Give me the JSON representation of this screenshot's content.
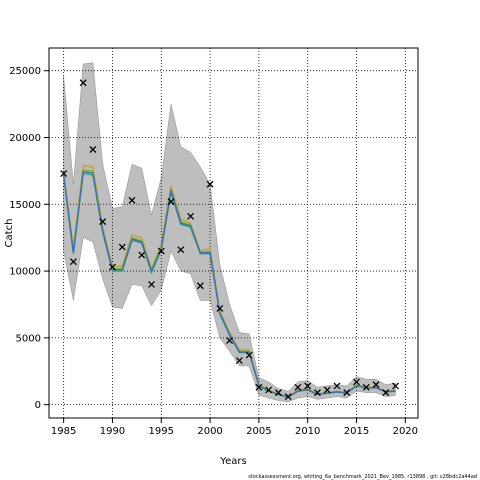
{
  "chart_data": {
    "type": "line",
    "title": "",
    "xlabel": "Years",
    "ylabel": "Catch",
    "xlim": [
      1983.5,
      2021.3
    ],
    "ylim": [
      -1000,
      26700
    ],
    "xticks": [
      1985,
      1990,
      1995,
      2000,
      2005,
      2010,
      2015,
      2020
    ],
    "yticks": [
      0,
      5000,
      10000,
      15000,
      20000,
      25000
    ],
    "grid": true,
    "legend": "none",
    "x": [
      1985,
      1986,
      1987,
      1988,
      1989,
      1990,
      1991,
      1992,
      1993,
      1994,
      1995,
      1996,
      1997,
      1998,
      1999,
      2000,
      2001,
      2002,
      2003,
      2004,
      2005,
      2006,
      2007,
      2008,
      2009,
      2010,
      2011,
      2012,
      2013,
      2014,
      2015,
      2016,
      2017,
      2018,
      2019
    ],
    "band_upper": [
      24600,
      16500,
      25500,
      25600,
      18000,
      14700,
      14800,
      18000,
      17700,
      14200,
      17000,
      22500,
      19300,
      18900,
      17800,
      16500,
      10500,
      7500,
      5400,
      5300,
      2000,
      1700,
      1200,
      1000,
      1700,
      1800,
      1300,
      1400,
      1500,
      1400,
      2100,
      1900,
      1900,
      1500,
      1600
    ],
    "band_lower": [
      11500,
      7800,
      12500,
      12200,
      9400,
      7300,
      7200,
      9000,
      8900,
      7400,
      8600,
      11500,
      10000,
      9800,
      7800,
      7800,
      5000,
      4000,
      2900,
      2900,
      700,
      500,
      300,
      200,
      500,
      600,
      400,
      500,
      600,
      500,
      1000,
      900,
      900,
      600,
      700
    ],
    "series": [
      {
        "values": [
          17400,
          11700,
          17900,
          17800,
          13300,
          10300,
          10400,
          12700,
          12500,
          10200,
          12000,
          16400,
          13900,
          13600,
          11500,
          11700,
          7000,
          5400,
          4100,
          4100,
          1500,
          1100,
          800,
          600,
          1100,
          1200,
          800,
          900,
          1000,
          900,
          1500,
          1300,
          1300,
          1000,
          1100
        ],
        "color": "#c8a03c"
      },
      {
        "values": [
          17300,
          11500,
          17600,
          17500,
          13100,
          10200,
          10200,
          12500,
          12300,
          10100,
          11800,
          16200,
          13700,
          13500,
          11400,
          11500,
          6900,
          5300,
          4000,
          4000,
          1450,
          1050,
          780,
          580,
          1050,
          1150,
          780,
          870,
          970,
          880,
          1450,
          1280,
          1280,
          980,
          1050
        ],
        "color": "#8cbf26"
      },
      {
        "values": [
          17200,
          11300,
          17300,
          17200,
          12900,
          10000,
          10000,
          12300,
          12100,
          9900,
          11600,
          15900,
          13500,
          13300,
          11300,
          11300,
          6800,
          5200,
          3900,
          3900,
          1400,
          1000,
          750,
          560,
          1000,
          1100,
          760,
          850,
          950,
          860,
          1400,
          1250,
          1250,
          960,
          1000
        ],
        "color": "#1fa187"
      },
      {
        "values": [
          17250,
          11400,
          17450,
          17350,
          13000,
          10100,
          10100,
          12400,
          12200,
          10000,
          11700,
          16050,
          13600,
          13400,
          11350,
          11400,
          6850,
          5250,
          3950,
          3950,
          1420,
          1020,
          760,
          570,
          1020,
          1120,
          770,
          860,
          960,
          870,
          1420,
          1260,
          1260,
          970,
          1020
        ],
        "color": "#3f6fb0"
      }
    ],
    "observed": [
      17300,
      10700,
      24100,
      19100,
      13700,
      10300,
      11800,
      15300,
      11200,
      9000,
      11500,
      15200,
      11600,
      14100,
      8900,
      16500,
      7200,
      4800,
      3300,
      3700,
      1300,
      1100,
      900,
      600,
      1300,
      1400,
      900,
      1100,
      1400,
      900,
      1700,
      1300,
      1500,
      900,
      1400
    ],
    "band_color": "#bebebe",
    "observed_marker": "x"
  },
  "footer": "stockassessment.org, whiting_6a_benchmark_2021_Bev_1985, r13898 , git: c28bdc2a44ad"
}
